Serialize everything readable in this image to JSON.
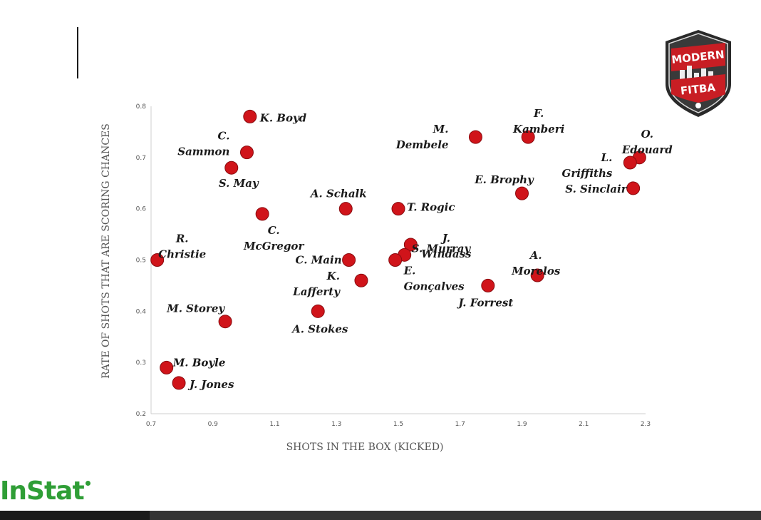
{
  "chart_data": {
    "type": "scatter",
    "xlabel": "SHOTS IN THE BOX (KICKED)",
    "ylabel": "RATE OF SHOTS THAT ARE SCORING CHANCES",
    "xlim": [
      0.7,
      2.3
    ],
    "ylim": [
      0.2,
      0.8
    ],
    "xticks": [
      "0.7",
      "0.9",
      "1.1",
      "1.3",
      "1.5",
      "1.7",
      "1.9",
      "2.1",
      "2.3"
    ],
    "yticks": [
      "0.2",
      "0.3",
      "0.4",
      "0.5",
      "0.6",
      "0.7",
      "0.8"
    ],
    "grid": false,
    "marker_color": "#d0141a",
    "points": [
      {
        "label": "K. Boyd",
        "x": 1.02,
        "y": 0.78
      },
      {
        "label": "C. Sammon",
        "x": 1.01,
        "y": 0.71
      },
      {
        "label": "S. May",
        "x": 0.96,
        "y": 0.68
      },
      {
        "label": "C. McGregor",
        "x": 1.06,
        "y": 0.59
      },
      {
        "label": "R. Christie",
        "x": 0.72,
        "y": 0.5
      },
      {
        "label": "M. Storey",
        "x": 0.94,
        "y": 0.38
      },
      {
        "label": "M. Boyle",
        "x": 0.75,
        "y": 0.29
      },
      {
        "label": "J. Jones",
        "x": 0.79,
        "y": 0.26
      },
      {
        "label": "A. Schalk",
        "x": 1.33,
        "y": 0.6
      },
      {
        "label": "C. Main",
        "x": 1.34,
        "y": 0.5
      },
      {
        "label": "K. Lafferty",
        "x": 1.38,
        "y": 0.46
      },
      {
        "label": "A. Stokes",
        "x": 1.24,
        "y": 0.4
      },
      {
        "label": "T. Rogic",
        "x": 1.5,
        "y": 0.6
      },
      {
        "label": "J. Windass",
        "x": 1.54,
        "y": 0.53
      },
      {
        "label": "S. Murray",
        "x": 1.52,
        "y": 0.51
      },
      {
        "label": "E. Gonçalves",
        "x": 1.49,
        "y": 0.5
      },
      {
        "label": "M. Dembele",
        "x": 1.75,
        "y": 0.74
      },
      {
        "label": "F. Kamberi",
        "x": 1.92,
        "y": 0.74
      },
      {
        "label": "E. Brophy",
        "x": 1.9,
        "y": 0.63
      },
      {
        "label": "J. Forrest",
        "x": 1.79,
        "y": 0.45
      },
      {
        "label": "A. Morelos",
        "x": 1.95,
        "y": 0.47
      },
      {
        "label": "O. Edouard",
        "x": 2.28,
        "y": 0.7
      },
      {
        "label": "L. Griffiths",
        "x": 2.25,
        "y": 0.69
      },
      {
        "label": "S. Sinclair",
        "x": 2.26,
        "y": 0.64
      }
    ]
  },
  "branding": {
    "badge_top": "MODERN",
    "badge_bottom": "FITBA",
    "provider": "InStat"
  }
}
